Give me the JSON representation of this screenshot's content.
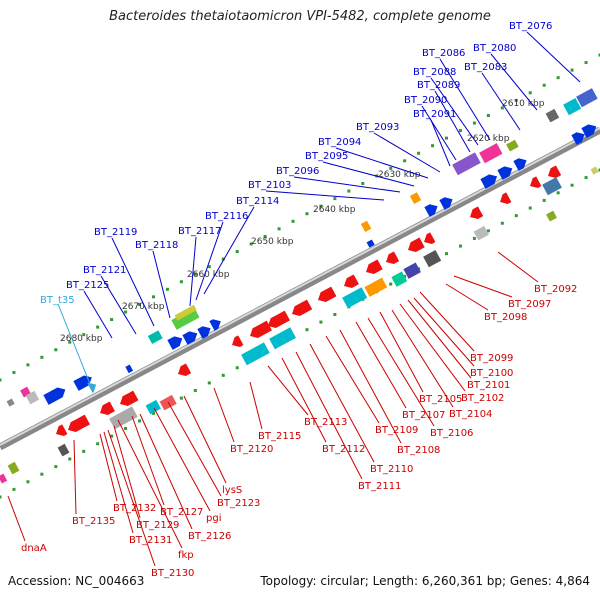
{
  "title": "Bacteroides thetaiotaomicron VPI-5482, complete genome",
  "footer": {
    "accession": "Accession: NC_004663",
    "topology": "Topology: circular; Length: 6,260,361 bp; Genes: 4,864"
  },
  "colors": {
    "forward_label": "#0000cc",
    "reverse_label": "#cc0000",
    "rna_label": "#33aadd",
    "backbone": "#888888",
    "gc_dots": "#339933"
  },
  "scale_ticks": [
    "2610 kbp",
    "2620 kbp",
    "2630 kbp",
    "2640 kbp",
    "2650 kbp",
    "2660 kbp",
    "2670 kbp",
    "2680 kbp"
  ],
  "forward_labels": [
    "BT_2076",
    "BT_2080",
    "BT_2083",
    "BT_2086",
    "BT_2088",
    "BT_2089",
    "BT_2090",
    "BT_2091",
    "BT_2093",
    "BT_2094",
    "BT_2095",
    "BT_2096",
    "BT_2103",
    "BT_2114",
    "BT_2116",
    "BT_2117",
    "BT_2118",
    "BT_2119",
    "BT_2121",
    "BT_2125"
  ],
  "rna_labels": [
    "BT_t35"
  ],
  "reverse_labels": [
    "BT_2092",
    "BT_2097",
    "BT_2098",
    "BT_2099",
    "BT_2100",
    "BT_2101",
    "BT_2102",
    "BT_2104",
    "BT_2105",
    "BT_2106",
    "BT_2107",
    "BT_2108",
    "BT_2109",
    "BT_2110",
    "BT_2111",
    "BT_2112",
    "BT_2113",
    "BT_2115",
    "BT_2120",
    "lysS",
    "BT_2123",
    "pgi",
    "BT_2126",
    "BT_2127",
    "fkp",
    "BT_2129",
    "BT_2130",
    "BT_2131",
    "BT_2132",
    "BT_2135",
    "dnaA"
  ]
}
